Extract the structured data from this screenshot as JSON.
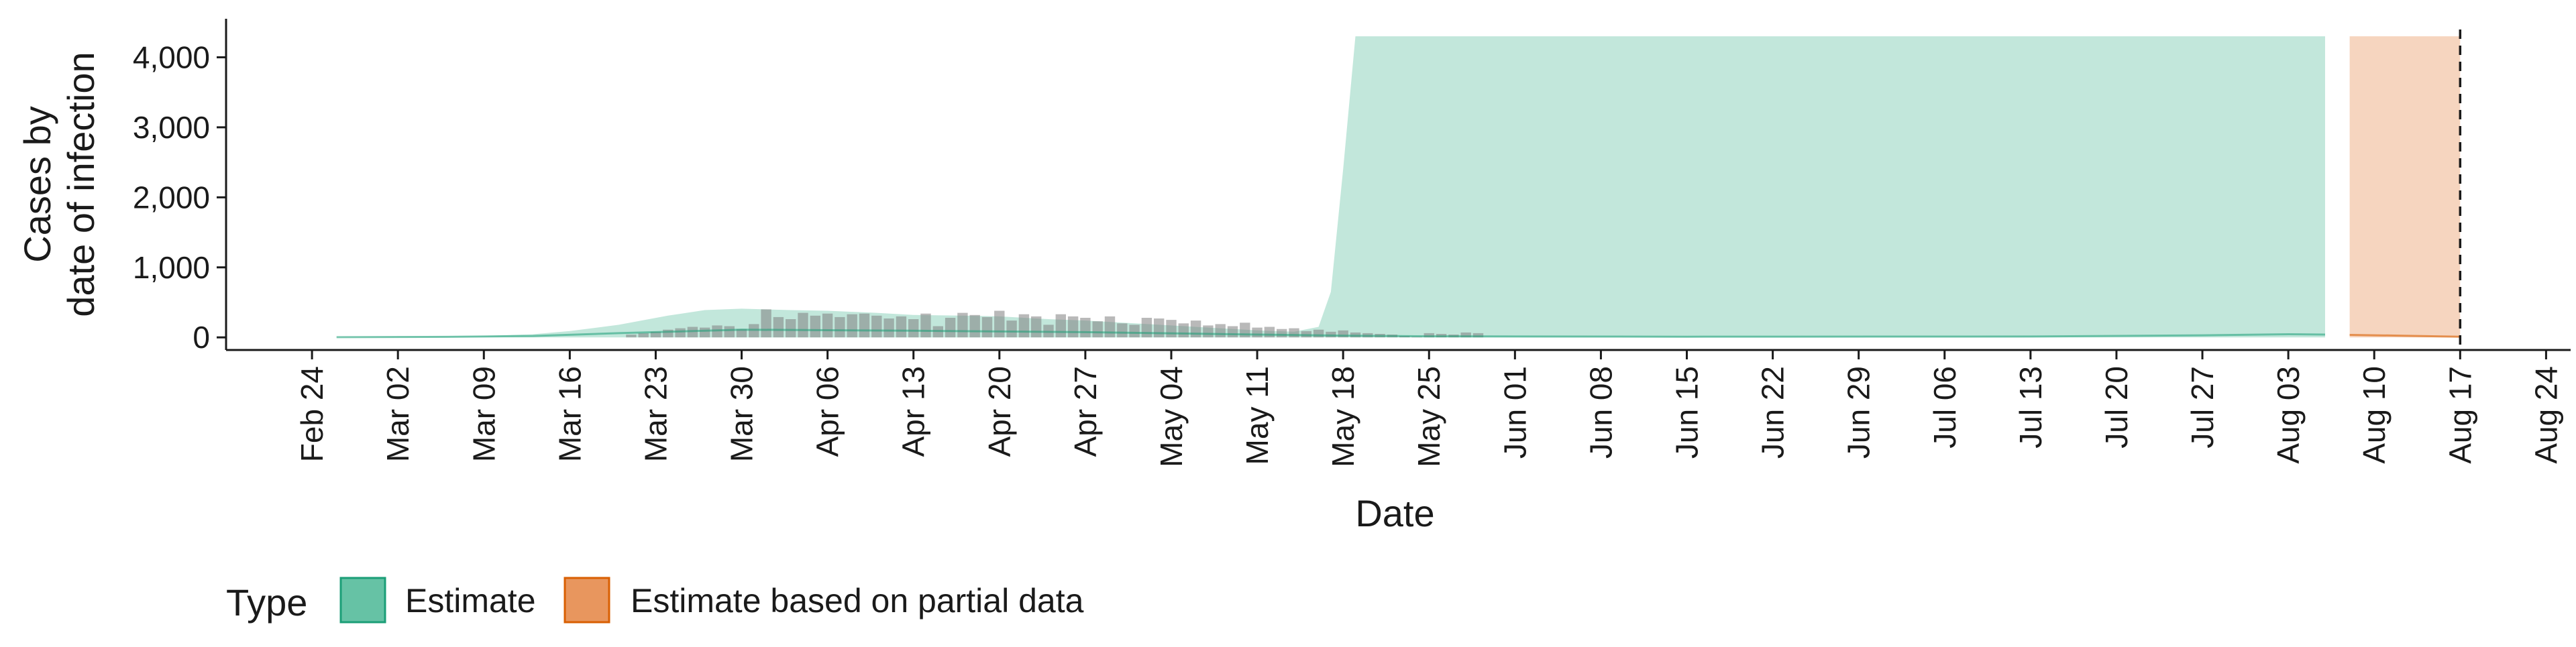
{
  "chart_data": {
    "type": "area",
    "ylabel_lines": [
      "Cases by",
      "date of infection"
    ],
    "xlabel": "Date",
    "x_range": [
      "2020-02-17",
      "2020-08-26"
    ],
    "ylim": [
      -180,
      4550
    ],
    "y_ticks": [
      0,
      1000,
      2000,
      3000,
      4000
    ],
    "y_tick_labels": [
      "0",
      "1,000",
      "2,000",
      "3,000",
      "4,000"
    ],
    "x_tick_dates": [
      "2020-02-24",
      "2020-03-02",
      "2020-03-09",
      "2020-03-16",
      "2020-03-23",
      "2020-03-30",
      "2020-04-06",
      "2020-04-13",
      "2020-04-20",
      "2020-04-27",
      "2020-05-04",
      "2020-05-11",
      "2020-05-18",
      "2020-05-25",
      "2020-06-01",
      "2020-06-08",
      "2020-06-15",
      "2020-06-22",
      "2020-06-29",
      "2020-07-06",
      "2020-07-13",
      "2020-07-20",
      "2020-07-27",
      "2020-08-03",
      "2020-08-10",
      "2020-08-17",
      "2020-08-24"
    ],
    "x_tick_labels": [
      "Feb 24",
      "Mar 02",
      "Mar 09",
      "Mar 16",
      "Mar 23",
      "Mar 30",
      "Apr 06",
      "Apr 13",
      "Apr 20",
      "Apr 27",
      "May 04",
      "May 11",
      "May 18",
      "May 25",
      "Jun 01",
      "Jun 08",
      "Jun 15",
      "Jun 22",
      "Jun 29",
      "Jul 06",
      "Jul 13",
      "Jul 20",
      "Jul 27",
      "Aug 03",
      "Aug 10",
      "Aug 17",
      "Aug 24"
    ],
    "vline_date": "2020-08-17",
    "grid": false,
    "legend": {
      "position": "bottom-left",
      "title": "Type",
      "entries": [
        {
          "label": "Estimate",
          "fill": "#66C2A5",
          "border": "#1B9E77"
        },
        {
          "label": "Estimate based on partial data",
          "fill": "#E8965E",
          "border": "#D95F02"
        }
      ]
    },
    "series": [
      {
        "name": "Estimate",
        "kind": "ribbon",
        "fill": "#66C2A5",
        "opacity": 0.4,
        "points": [
          {
            "date": "2020-02-26",
            "lower": 0,
            "upper": 5
          },
          {
            "date": "2020-03-02",
            "lower": 0,
            "upper": 12
          },
          {
            "date": "2020-03-06",
            "lower": 0,
            "upper": 15
          },
          {
            "date": "2020-03-09",
            "lower": 0,
            "upper": 20
          },
          {
            "date": "2020-03-13",
            "lower": 0,
            "upper": 45
          },
          {
            "date": "2020-03-16",
            "lower": 0,
            "upper": 90
          },
          {
            "date": "2020-03-20",
            "lower": 0,
            "upper": 180
          },
          {
            "date": "2020-03-24",
            "lower": 0,
            "upper": 310
          },
          {
            "date": "2020-03-27",
            "lower": 0,
            "upper": 390
          },
          {
            "date": "2020-03-30",
            "lower": 0,
            "upper": 410
          },
          {
            "date": "2020-04-03",
            "lower": 0,
            "upper": 390
          },
          {
            "date": "2020-04-06",
            "lower": 0,
            "upper": 380
          },
          {
            "date": "2020-04-10",
            "lower": 0,
            "upper": 350
          },
          {
            "date": "2020-04-13",
            "lower": 0,
            "upper": 320
          },
          {
            "date": "2020-04-17",
            "lower": 0,
            "upper": 310
          },
          {
            "date": "2020-04-20",
            "lower": 0,
            "upper": 300
          },
          {
            "date": "2020-04-24",
            "lower": 0,
            "upper": 260
          },
          {
            "date": "2020-04-27",
            "lower": 0,
            "upper": 240
          },
          {
            "date": "2020-05-01",
            "lower": 0,
            "upper": 200
          },
          {
            "date": "2020-05-04",
            "lower": 0,
            "upper": 170
          },
          {
            "date": "2020-05-08",
            "lower": 0,
            "upper": 130
          },
          {
            "date": "2020-05-11",
            "lower": 0,
            "upper": 100
          },
          {
            "date": "2020-05-14",
            "lower": 0,
            "upper": 80
          },
          {
            "date": "2020-05-16",
            "lower": 0,
            "upper": 150
          },
          {
            "date": "2020-05-17",
            "lower": 0,
            "upper": 650
          },
          {
            "date": "2020-05-18",
            "lower": 0,
            "upper": 2400
          },
          {
            "date": "2020-05-19",
            "lower": 0,
            "upper": 4300
          },
          {
            "date": "2020-05-25",
            "lower": 0,
            "upper": 4300
          },
          {
            "date": "2020-06-15",
            "lower": 0,
            "upper": 4300
          },
          {
            "date": "2020-07-13",
            "lower": 0,
            "upper": 4300
          },
          {
            "date": "2020-08-06",
            "lower": 0,
            "upper": 4300
          }
        ]
      },
      {
        "name": "Estimate based on partial data",
        "kind": "ribbon",
        "fill": "#E8965E",
        "opacity": 0.4,
        "points": [
          {
            "date": "2020-08-08",
            "lower": 0,
            "upper": 4300
          },
          {
            "date": "2020-08-12",
            "lower": 0,
            "upper": 4300
          },
          {
            "date": "2020-08-17",
            "lower": 0,
            "upper": 4300
          }
        ]
      },
      {
        "name": "Estimate median",
        "kind": "line",
        "stroke": "#1B9E77",
        "opacity": 0.55,
        "points": [
          {
            "date": "2020-02-26",
            "value": 3
          },
          {
            "date": "2020-03-06",
            "value": 8
          },
          {
            "date": "2020-03-13",
            "value": 20
          },
          {
            "date": "2020-03-20",
            "value": 60
          },
          {
            "date": "2020-03-30",
            "value": 110
          },
          {
            "date": "2020-04-13",
            "value": 95
          },
          {
            "date": "2020-04-27",
            "value": 75
          },
          {
            "date": "2020-05-11",
            "value": 40
          },
          {
            "date": "2020-05-18",
            "value": 25
          },
          {
            "date": "2020-05-25",
            "value": 15
          },
          {
            "date": "2020-06-15",
            "value": 10
          },
          {
            "date": "2020-07-13",
            "value": 12
          },
          {
            "date": "2020-07-27",
            "value": 30
          },
          {
            "date": "2020-08-03",
            "value": 45
          },
          {
            "date": "2020-08-06",
            "value": 40
          }
        ]
      },
      {
        "name": "Partial data median",
        "kind": "line",
        "stroke": "#D95F02",
        "opacity": 0.6,
        "points": [
          {
            "date": "2020-08-08",
            "value": 35
          },
          {
            "date": "2020-08-12",
            "value": 25
          },
          {
            "date": "2020-08-17",
            "value": 10
          }
        ]
      }
    ],
    "bars": {
      "fill": "#7F7F7F",
      "opacity": 0.55,
      "start_date": "2020-03-21",
      "values": [
        40,
        60,
        80,
        110,
        130,
        150,
        140,
        170,
        160,
        120,
        190,
        400,
        290,
        260,
        350,
        310,
        340,
        290,
        330,
        340,
        310,
        270,
        300,
        260,
        340,
        160,
        280,
        350,
        320,
        290,
        380,
        240,
        330,
        300,
        180,
        330,
        300,
        280,
        230,
        300,
        200,
        180,
        280,
        270,
        250,
        200,
        240,
        170,
        190,
        160,
        210,
        140,
        150,
        120,
        130,
        90,
        110,
        80,
        100,
        70,
        60,
        50,
        40,
        20,
        10,
        60,
        50,
        40,
        70,
        60
      ]
    }
  }
}
